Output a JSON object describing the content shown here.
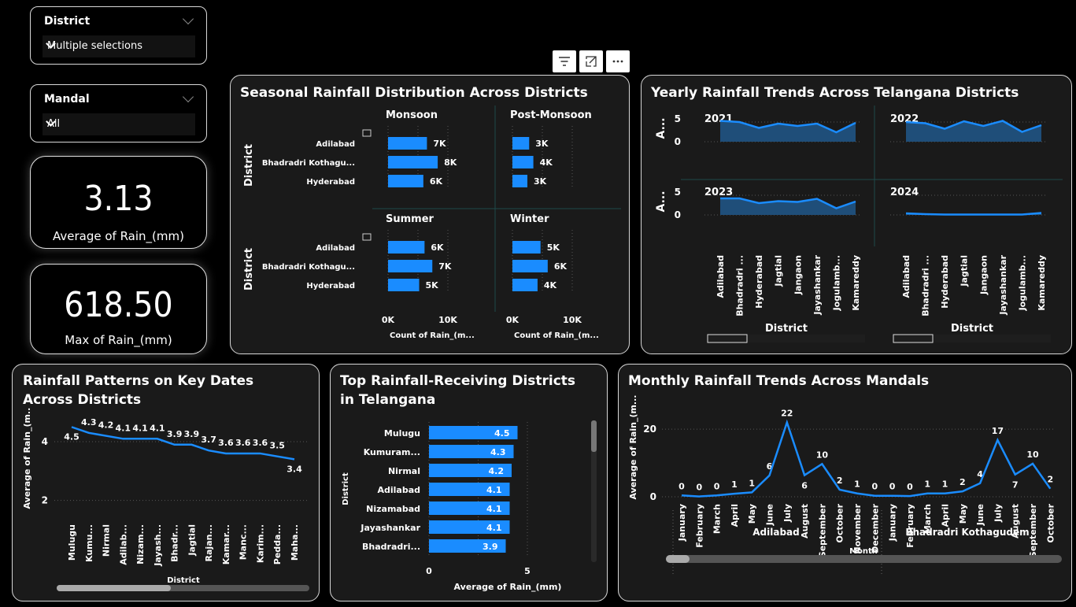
{
  "filters": {
    "district": {
      "label": "District",
      "value": "Multiple selections"
    },
    "mandal": {
      "label": "Mandal",
      "value": "All"
    }
  },
  "kpis": [
    {
      "value": "3.13",
      "caption": "Average of Rain_(mm)"
    },
    {
      "value": "618.50",
      "caption": "Max of Rain_(mm)"
    }
  ],
  "toolbar": {
    "icons": [
      "filter-icon",
      "focus-mode-icon",
      "more-options-icon"
    ]
  },
  "seasonal": {
    "title": "Seasonal Rainfall Distribution Across Districts",
    "y_axis_label": "District",
    "x_axis_label": "Count of Rain_(m...",
    "chart_data": {
      "type": "bar",
      "categories": [
        "Adilabad",
        "Bhadradri Kothagu...",
        "Hyderabad"
      ],
      "xlim": [
        0,
        10000
      ],
      "ticks": [
        "0K",
        "10K"
      ],
      "panels": [
        {
          "name": "Monsoon",
          "values": [
            6500,
            8300,
            5900
          ],
          "labels": [
            "7K",
            "8K",
            "6K"
          ]
        },
        {
          "name": "Post-Monsoon",
          "values": [
            2800,
            3500,
            2500
          ],
          "labels": [
            "3K",
            "4K",
            "3K"
          ]
        },
        {
          "name": "Summer",
          "values": [
            6100,
            7400,
            5200
          ],
          "labels": [
            "6K",
            "7K",
            "5K"
          ]
        },
        {
          "name": "Winter",
          "values": [
            4700,
            5900,
            4200
          ],
          "labels": [
            "5K",
            "6K",
            "4K"
          ]
        }
      ]
    }
  },
  "yearly": {
    "title": "Yearly Rainfall Trends Across Telangana Districts",
    "y_axis_label": "A...",
    "x_axis_label": "District",
    "chart_data": {
      "type": "area",
      "categories": [
        "Adilabad",
        "Bhadradri ...",
        "Hyderabad",
        "Jagtial",
        "Jangaon",
        "Jayashankar",
        "Jogulamb...",
        "Kamareddy"
      ],
      "ylim": [
        0,
        6
      ],
      "ticks": [
        "0",
        "5"
      ],
      "panels": [
        {
          "name": "2021",
          "values": [
            5.3,
            5.0,
            3.5,
            4.6,
            4.0,
            4.6,
            2.4,
            4.8
          ]
        },
        {
          "name": "2022",
          "values": [
            5.0,
            4.7,
            3.3,
            5.2,
            4.0,
            5.3,
            2.5,
            4.2
          ]
        },
        {
          "name": "2023",
          "values": [
            4.2,
            4.2,
            3.0,
            3.5,
            3.3,
            4.1,
            1.7,
            3.4
          ]
        },
        {
          "name": "2024",
          "values": [
            0.4,
            0.2,
            0.1,
            0.1,
            0.1,
            0.1,
            0.1,
            0.5
          ]
        }
      ]
    }
  },
  "keydates": {
    "title": "Rainfall Patterns on Key Dates Across Districts",
    "y_axis_label": "Average of Rain_(m...",
    "x_axis_label": "District",
    "chart_data": {
      "type": "line",
      "categories": [
        "Mulugu",
        "Kumu...",
        "Nirmal",
        "Adilab...",
        "Nizam...",
        "Jayash...",
        "Bhadr...",
        "Jagtial",
        "Rajan...",
        "Kamar...",
        "Manc...",
        "Karim...",
        "Pedda...",
        "Maha..."
      ],
      "values": [
        4.5,
        4.3,
        4.2,
        4.1,
        4.1,
        4.1,
        3.9,
        3.9,
        3.7,
        3.6,
        3.6,
        3.6,
        3.5,
        3.4
      ],
      "labels": [
        "4.5",
        "4.3",
        "4.2",
        "4.1",
        "4.1",
        "4.1",
        "3.9",
        "3.9",
        "3.7",
        "3.6",
        "3.6",
        "3.6",
        "3.5",
        "3.4"
      ],
      "ylim": [
        1.4,
        5.1
      ],
      "ticks": [
        "2",
        "4"
      ]
    }
  },
  "topdistricts": {
    "title": "Top Rainfall-Receiving Districts in Telangana",
    "y_axis_label": "District",
    "x_axis_label": "Average of Rain_(mm)",
    "chart_data": {
      "type": "bar",
      "categories": [
        "Mulugu",
        "Kumuram...",
        "Nirmal",
        "Adilabad",
        "Nizamabad",
        "Jayashankar",
        "Bhadradri..."
      ],
      "values": [
        4.5,
        4.3,
        4.2,
        4.1,
        4.1,
        4.1,
        3.9
      ],
      "labels": [
        "4.5",
        "4.3",
        "4.2",
        "4.1",
        "4.1",
        "4.1",
        "3.9"
      ],
      "xlim": [
        0,
        5
      ],
      "ticks": [
        "0",
        "5"
      ]
    }
  },
  "monthly": {
    "title": "Monthly Rainfall Trends Across Mandals",
    "y_axis_label": "Average of Rain_(m...",
    "x_axis_label": "Month",
    "chart_data": {
      "type": "line",
      "ylim": [
        0,
        24
      ],
      "ticks": [
        "0",
        "20"
      ],
      "groups": [
        {
          "name": "Adilabad",
          "categories": [
            "January",
            "February",
            "March",
            "April",
            "May",
            "June",
            "July",
            "August",
            "September",
            "October",
            "November",
            "December"
          ],
          "values": [
            0.4,
            0.1,
            0.4,
            0.9,
            1.3,
            6.3,
            22,
            6.4,
            9.7,
            2.1,
            1.0,
            0.3
          ],
          "labels": [
            "0",
            "0",
            "0",
            "1",
            "1",
            "6",
            "22",
            "6",
            "10",
            "2",
            "1",
            "0"
          ]
        },
        {
          "name": "Bhadradri Kothagudem",
          "categories": [
            "January",
            "February",
            "March",
            "April",
            "May",
            "June",
            "July",
            "August",
            "September",
            "October"
          ],
          "values": [
            0.3,
            0.2,
            1.0,
            1.0,
            1.6,
            4.0,
            16.8,
            6.6,
            9.8,
            2.4
          ],
          "labels": [
            "0",
            "0",
            "1",
            "1",
            "2",
            "4",
            "17",
            "7",
            "10",
            "2"
          ]
        }
      ]
    }
  }
}
